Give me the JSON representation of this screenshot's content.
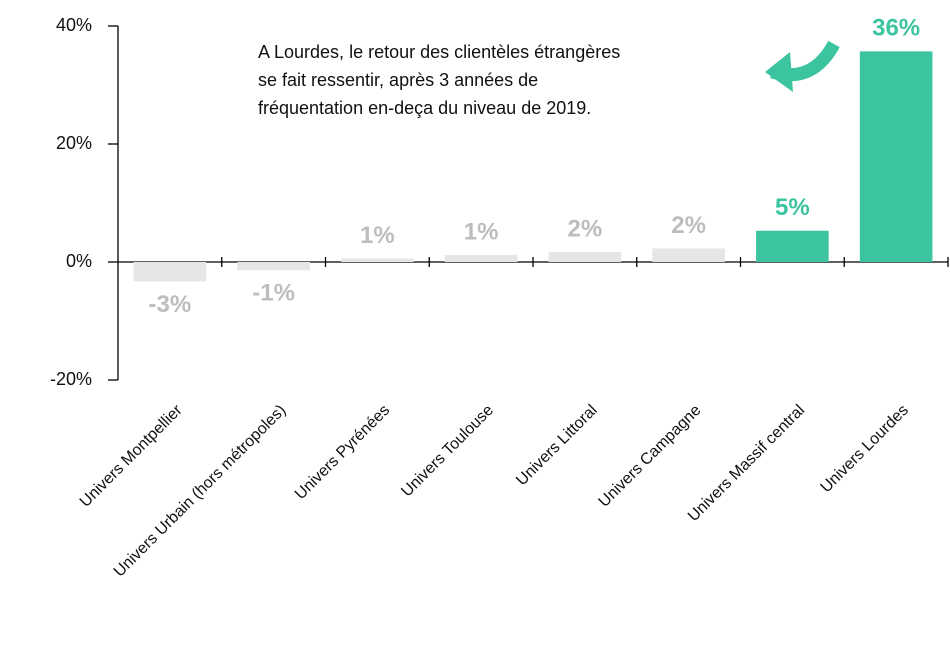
{
  "chart_data": {
    "type": "bar",
    "annotation": [
      "A Lourdes, le retour des clientèles étrangères",
      "se fait ressentir, après 3 années de",
      "fréquentation en-deça du niveau de 2019."
    ],
    "categories": [
      "Univers Montpellier",
      "Univers Urbain (hors métropoles)",
      "Univers Pyrénées",
      "Univers Toulouse",
      "Univers Littoral",
      "Univers Campagne",
      "Univers Massif central",
      "Univers Lourdes"
    ],
    "values": [
      -3.3,
      -1.4,
      0.6,
      1.2,
      1.7,
      2.3,
      5.3,
      35.7
    ],
    "value_labels": [
      "-3%",
      "-1%",
      "1%",
      "1%",
      "2%",
      "2%",
      "5%",
      "36%"
    ],
    "colors": [
      "#e6e6e6",
      "#e6e6e6",
      "#e6e6e6",
      "#e6e6e6",
      "#e6e6e6",
      "#e6e6e6",
      "#3cc4a1",
      "#3cc4a1"
    ],
    "label_colors": [
      "#bdbdbd",
      "#bdbdbd",
      "#bdbdbd",
      "#bdbdbd",
      "#bdbdbd",
      "#bdbdbd",
      "#3cc4a1",
      "#3cc4a1"
    ],
    "ylim": [
      -20,
      40
    ],
    "yticks": [
      {
        "value": -20,
        "label": "-20%"
      },
      {
        "value": 0,
        "label": "0%"
      },
      {
        "value": 20,
        "label": "20%"
      },
      {
        "value": 40,
        "label": "40%"
      }
    ],
    "grid": false
  }
}
